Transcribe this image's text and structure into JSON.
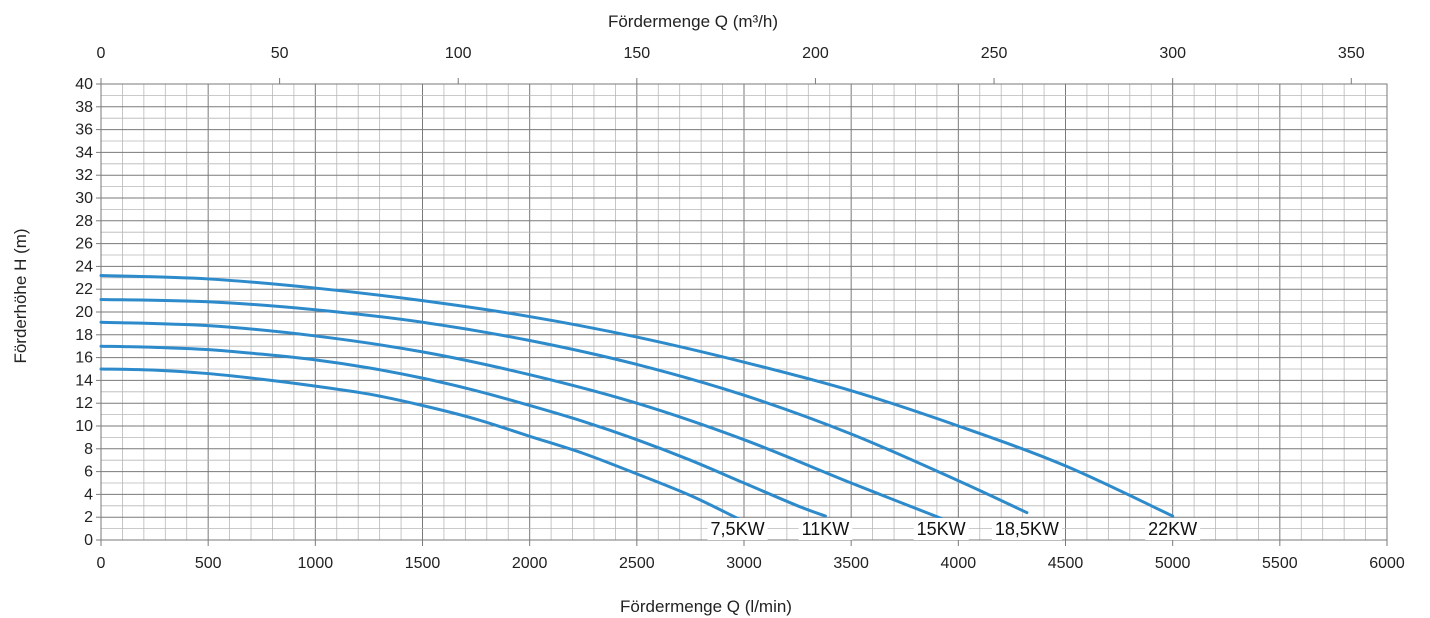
{
  "chart_data": {
    "type": "line",
    "title": "",
    "xlabel": "Fördermenge Q (l/min)",
    "x2label": "Fördermenge Q (m³/h)",
    "ylabel": "Förderhöhe H  (m)",
    "xlim": [
      0,
      6000
    ],
    "x2lim": [
      0,
      360
    ],
    "ylim": [
      0,
      40
    ],
    "xticks": [
      0,
      500,
      1000,
      1500,
      2000,
      2500,
      3000,
      3500,
      4000,
      4500,
      5000,
      5500,
      6000
    ],
    "x2ticks": [
      0,
      50,
      100,
      150,
      200,
      250,
      300,
      350
    ],
    "yticks": [
      0,
      2,
      4,
      6,
      8,
      10,
      12,
      14,
      16,
      18,
      20,
      22,
      24,
      26,
      28,
      30,
      32,
      34,
      36,
      38,
      40
    ],
    "grid": true,
    "series_color": "#2E8BCB",
    "series": [
      {
        "name": "7,5KW",
        "x": [
          0,
          250,
          500,
          750,
          1000,
          1250,
          1500,
          1750,
          2000,
          2250,
          2500,
          2750,
          2970
        ],
        "y": [
          15.0,
          14.9,
          14.6,
          14.1,
          13.5,
          12.8,
          11.8,
          10.6,
          9.1,
          7.6,
          5.8,
          3.9,
          1.9
        ]
      },
      {
        "name": "11KW",
        "x": [
          0,
          250,
          500,
          750,
          1000,
          1250,
          1500,
          1750,
          2000,
          2250,
          2500,
          2750,
          3000,
          3250,
          3380
        ],
        "y": [
          17.0,
          16.9,
          16.7,
          16.3,
          15.8,
          15.1,
          14.2,
          13.1,
          11.8,
          10.4,
          8.8,
          7.0,
          5.0,
          3.0,
          2.1
        ]
      },
      {
        "name": "15KW",
        "x": [
          0,
          500,
          1000,
          1500,
          2000,
          2500,
          3000,
          3500,
          3920
        ],
        "y": [
          19.1,
          18.8,
          17.9,
          16.5,
          14.5,
          12.0,
          8.8,
          5.0,
          1.9
        ]
      },
      {
        "name": "18,5KW",
        "x": [
          0,
          500,
          1000,
          1500,
          2000,
          2500,
          3000,
          3500,
          4000,
          4320
        ],
        "y": [
          21.1,
          20.9,
          20.2,
          19.1,
          17.5,
          15.4,
          12.7,
          9.3,
          5.2,
          2.4
        ]
      },
      {
        "name": "22KW",
        "x": [
          0,
          500,
          1000,
          1500,
          2000,
          2500,
          3000,
          3500,
          4000,
          4500,
          5000
        ],
        "y": [
          23.2,
          22.9,
          22.1,
          21.0,
          19.6,
          17.8,
          15.6,
          13.1,
          10.0,
          6.5,
          2.1
        ]
      }
    ]
  }
}
